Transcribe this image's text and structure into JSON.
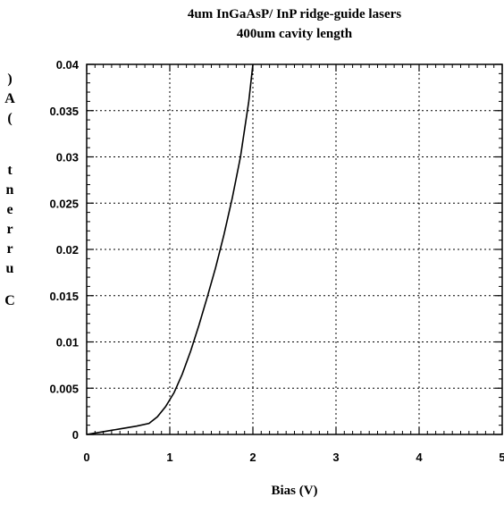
{
  "chart_data": {
    "type": "line",
    "title": "4um InGaAsP/ InP ridge-guide lasers",
    "subtitle": "400um cavity length",
    "xlabel": "Bias (V)",
    "ylabel_chars": [
      ")",
      "A",
      "(",
      "t",
      "n",
      "e",
      "r",
      "r",
      "u",
      "C"
    ],
    "xlim": [
      0,
      5
    ],
    "ylim": [
      0,
      0.04
    ],
    "x_ticks": [
      "0",
      "1",
      "2",
      "3",
      "4",
      "5"
    ],
    "y_ticks": [
      "0",
      "0.005",
      "0.01",
      "0.015",
      "0.02",
      "0.025",
      "0.03",
      "0.035",
      "0.04"
    ],
    "grid": true,
    "series": [
      {
        "x": [
          0.0,
          0.2,
          0.4,
          0.6,
          0.75,
          0.85,
          0.95,
          1.05,
          1.15,
          1.25,
          1.35,
          1.45,
          1.55,
          1.65,
          1.75,
          1.85,
          1.95,
          2.0
        ],
        "y": [
          0.0,
          0.0003,
          0.0006,
          0.0009,
          0.0012,
          0.0019,
          0.003,
          0.0045,
          0.0065,
          0.009,
          0.0118,
          0.0148,
          0.018,
          0.0215,
          0.0255,
          0.03,
          0.036,
          0.04
        ]
      }
    ]
  }
}
